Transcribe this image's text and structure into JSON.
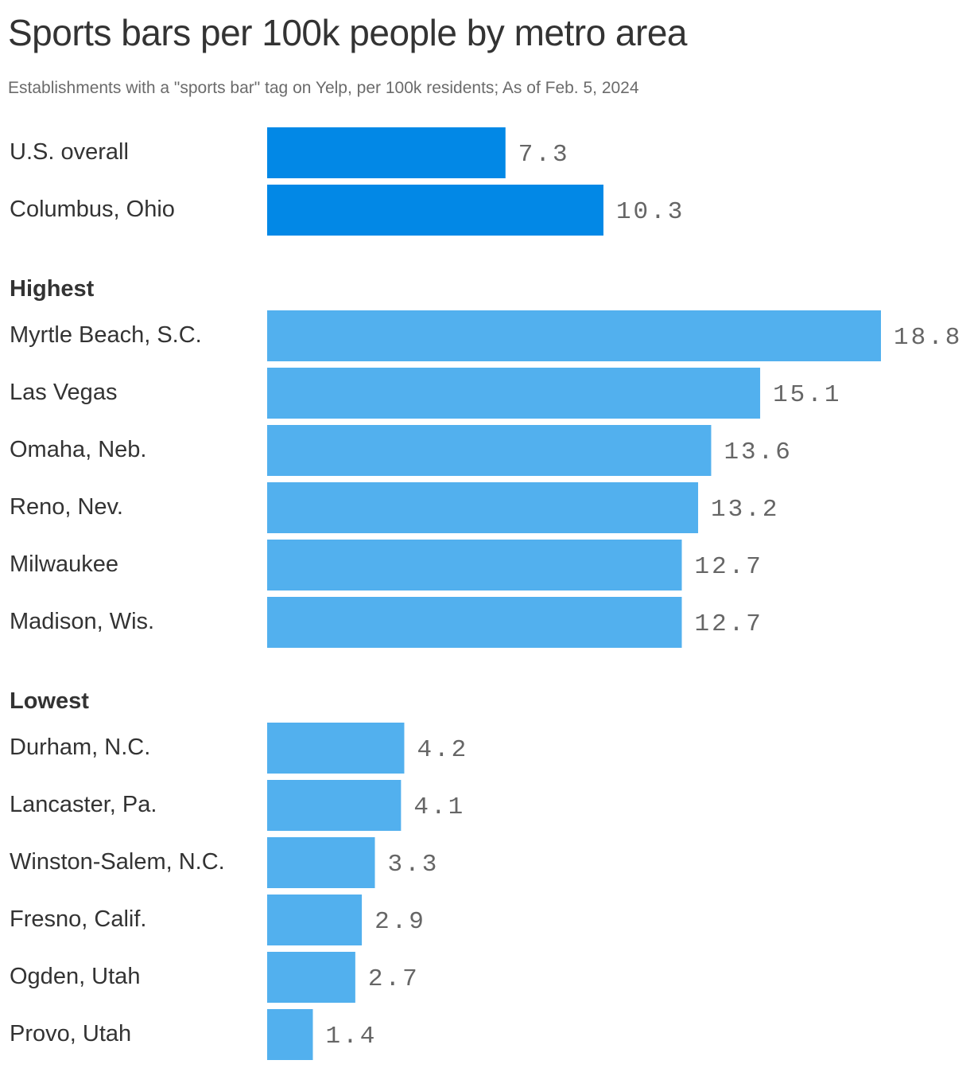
{
  "header": {
    "title": "Sports bars per 100k people by metro area",
    "subtitle": "Establishments with a \"sports bar\" tag on Yelp, per 100k residents; As of Feb. 5, 2024"
  },
  "colors": {
    "highlight": "#0288e6",
    "bar": "#52b0ee",
    "label": "#333333",
    "value": "#666666"
  },
  "chart_data": {
    "type": "bar",
    "orientation": "horizontal",
    "title": "Sports bars per 100k people by metro area",
    "subtitle": "Establishments with a \"sports bar\" tag on Yelp, per 100k residents; As of Feb. 5, 2024",
    "xlim": [
      0,
      18.8
    ],
    "groups": [
      {
        "label": "",
        "color": "#0288e6",
        "categories": [
          "U.S. overall",
          "Columbus, Ohio"
        ],
        "values": [
          7.3,
          10.3
        ]
      },
      {
        "label": "Highest",
        "color": "#52b0ee",
        "categories": [
          "Myrtle Beach, S.C.",
          "Las Vegas",
          "Omaha, Neb.",
          "Reno, Nev.",
          "Milwaukee",
          "Madison, Wis."
        ],
        "values": [
          18.8,
          15.1,
          13.6,
          13.2,
          12.7,
          12.7
        ]
      },
      {
        "label": "Lowest",
        "color": "#52b0ee",
        "categories": [
          "Durham, N.C.",
          "Lancaster, Pa.",
          "Winston-Salem, N.C.",
          "Fresno, Calif.",
          "Ogden, Utah",
          "Provo, Utah"
        ],
        "values": [
          4.2,
          4.1,
          3.3,
          2.9,
          2.7,
          1.4
        ]
      }
    ]
  }
}
